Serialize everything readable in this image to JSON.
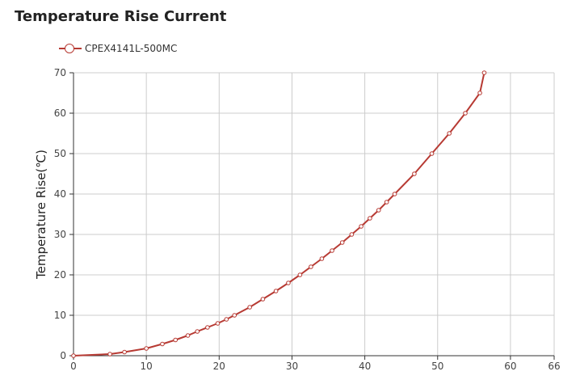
{
  "chart_data": {
    "type": "line",
    "title": "Temperature Rise Current",
    "xlabel": "",
    "ylabel": "Temperature Rise(℃)",
    "xlim": [
      0,
      66
    ],
    "ylim": [
      0,
      70
    ],
    "x_ticks": [
      0,
      10,
      20,
      30,
      40,
      50,
      60,
      66
    ],
    "y_ticks": [
      0,
      10,
      20,
      30,
      40,
      50,
      60,
      70
    ],
    "grid": true,
    "legend_position": "top-left",
    "series": [
      {
        "name": "CPEX4141L-500MC",
        "color": "#b73a33",
        "points": [
          [
            0,
            0
          ],
          [
            5,
            0.4
          ],
          [
            7,
            0.9
          ],
          [
            10,
            1.8
          ],
          [
            12.2,
            2.9
          ],
          [
            14,
            3.9
          ],
          [
            15.7,
            5
          ],
          [
            17,
            6
          ],
          [
            18.4,
            7
          ],
          [
            19.8,
            8
          ],
          [
            21,
            9
          ],
          [
            22.1,
            10
          ],
          [
            24.2,
            12
          ],
          [
            26,
            14
          ],
          [
            27.8,
            16
          ],
          [
            29.5,
            18
          ],
          [
            31.1,
            20
          ],
          [
            32.6,
            22
          ],
          [
            34.1,
            24
          ],
          [
            35.5,
            26
          ],
          [
            36.9,
            28
          ],
          [
            38.2,
            30
          ],
          [
            39.5,
            32
          ],
          [
            40.7,
            34
          ],
          [
            41.9,
            36
          ],
          [
            43,
            38
          ],
          [
            44.1,
            40
          ],
          [
            46.8,
            45
          ],
          [
            49.2,
            50
          ],
          [
            51.6,
            55
          ],
          [
            53.8,
            60
          ],
          [
            55.8,
            65
          ],
          [
            56.4,
            70
          ]
        ]
      }
    ]
  }
}
